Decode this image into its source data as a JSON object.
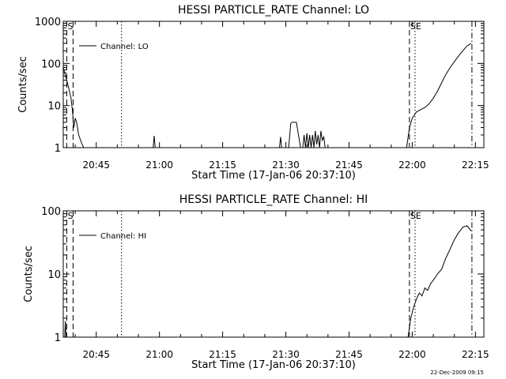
{
  "footer_timestamp": "22-Dec-2009 09:15",
  "chart_data": [
    {
      "type": "line",
      "title": "HESSI PARTICLE_RATE Channel: LO",
      "xlabel": "Start Time (17-Jan-06 20:37:10)",
      "ylabel": "Counts/sec",
      "y_scale": "log",
      "xlim": [
        "20:37:10",
        "22:17:00"
      ],
      "ylim": [
        1,
        1000
      ],
      "x_ticks": [
        "20:45",
        "21:00",
        "21:15",
        "21:30",
        "21:45",
        "22:00",
        "22:15"
      ],
      "y_ticks": [
        "1",
        "10",
        "100",
        "1000"
      ],
      "legend": {
        "entries": [
          "Channel: LO"
        ],
        "placement": "top-left"
      },
      "markers": [
        {
          "label": "S",
          "x": "20:38:00",
          "style": "dashed"
        },
        {
          "label": "",
          "x": "20:39:30",
          "style": "dashed"
        },
        {
          "label": "",
          "x": "20:51:00",
          "style": "dotted"
        },
        {
          "label": "SE",
          "x": "21:59:20",
          "style": "dashed"
        },
        {
          "label": "",
          "x": "22:00:40",
          "style": "dotted"
        },
        {
          "label": "",
          "x": "22:14:10",
          "style": "dash-dot"
        }
      ],
      "series": [
        {
          "name": "Channel: LO",
          "x": [
            "20:37:10",
            "20:37:30",
            "20:38:00",
            "20:38:30",
            "20:39:00",
            "20:39:20",
            "20:39:40",
            "20:40:00",
            "20:40:20",
            "20:40:50",
            "20:41:30",
            "20:42:00"
          ],
          "y": [
            80,
            60,
            40,
            25,
            15,
            8,
            3,
            5,
            4,
            2,
            1.3,
            1
          ]
        },
        {
          "name": "Channel: LO",
          "x": [
            "20:58:30",
            "20:58:45",
            "20:59:00"
          ],
          "y": [
            1,
            1.9,
            1
          ]
        },
        {
          "name": "Channel: LO",
          "x": [
            "21:28:30",
            "21:28:45",
            "21:29:00"
          ],
          "y": [
            1,
            1.8,
            1
          ]
        },
        {
          "name": "Channel: LO",
          "x": [
            "21:30:40",
            "21:31:10",
            "21:31:30",
            "21:32:30",
            "21:33:00",
            "21:33:30"
          ],
          "y": [
            1,
            3.8,
            4,
            4,
            2,
            1
          ]
        },
        {
          "name": "Channel: LO",
          "x": [
            "21:34:00",
            "21:34:20",
            "21:34:40",
            "21:35:00",
            "21:35:20",
            "21:35:40",
            "21:36:00",
            "21:36:20",
            "21:36:40",
            "21:37:00",
            "21:37:20",
            "21:37:40",
            "21:38:00",
            "21:38:20",
            "21:38:40",
            "21:39:00",
            "21:39:20"
          ],
          "y": [
            1,
            2,
            1,
            2.2,
            1,
            2,
            1,
            2,
            1,
            2.5,
            1.2,
            2,
            1,
            2.5,
            1.5,
            1.8,
            1
          ]
        },
        {
          "name": "Channel: LO",
          "x": [
            "21:58:40",
            "21:59:20",
            "22:00:00",
            "22:01:00",
            "22:02:00",
            "22:03:00",
            "22:04:00",
            "22:05:00",
            "22:06:00",
            "22:07:00",
            "22:08:00",
            "22:09:00",
            "22:10:00",
            "22:11:00",
            "22:12:00",
            "22:13:00",
            "22:14:00"
          ],
          "y": [
            1,
            3,
            5,
            7,
            8,
            9,
            11,
            15,
            22,
            35,
            55,
            80,
            110,
            150,
            200,
            260,
            300
          ]
        }
      ]
    },
    {
      "type": "line",
      "title": "HESSI PARTICLE_RATE Channel: HI",
      "xlabel": "Start Time (17-Jan-06 20:37:10)",
      "ylabel": "Counts/sec",
      "y_scale": "log",
      "xlim": [
        "20:37:10",
        "22:17:00"
      ],
      "ylim": [
        1,
        100
      ],
      "x_ticks": [
        "20:45",
        "21:00",
        "21:15",
        "21:30",
        "21:45",
        "22:00",
        "22:15"
      ],
      "y_ticks": [
        "1",
        "10",
        "100"
      ],
      "legend": {
        "entries": [
          "Channel: HI"
        ],
        "placement": "top-left"
      },
      "markers": [
        {
          "label": "S",
          "x": "20:38:00",
          "style": "dashed"
        },
        {
          "label": "",
          "x": "20:39:30",
          "style": "dashed"
        },
        {
          "label": "",
          "x": "20:51:00",
          "style": "dotted"
        },
        {
          "label": "SE",
          "x": "21:59:20",
          "style": "dashed"
        },
        {
          "label": "",
          "x": "22:00:40",
          "style": "dotted"
        },
        {
          "label": "",
          "x": "22:14:10",
          "style": "dash-dot"
        }
      ],
      "series": [
        {
          "name": "Channel: HI",
          "x": [
            "20:37:30",
            "20:37:40",
            "20:37:50"
          ],
          "y": [
            1,
            1.8,
            1
          ]
        },
        {
          "name": "Channel: HI",
          "x": [
            "21:59:00",
            "21:59:40",
            "22:00:20",
            "22:01:00",
            "22:01:40",
            "22:02:20",
            "22:03:00",
            "22:03:40",
            "22:04:20",
            "22:05:00",
            "22:06:00",
            "22:07:00",
            "22:08:00",
            "22:09:00",
            "22:10:00",
            "22:11:00",
            "22:12:00",
            "22:13:00",
            "22:14:00"
          ],
          "y": [
            1,
            2,
            3,
            4,
            5,
            4.5,
            6,
            5.5,
            7,
            8,
            10,
            12,
            18,
            25,
            35,
            45,
            55,
            58,
            48
          ]
        }
      ]
    }
  ]
}
